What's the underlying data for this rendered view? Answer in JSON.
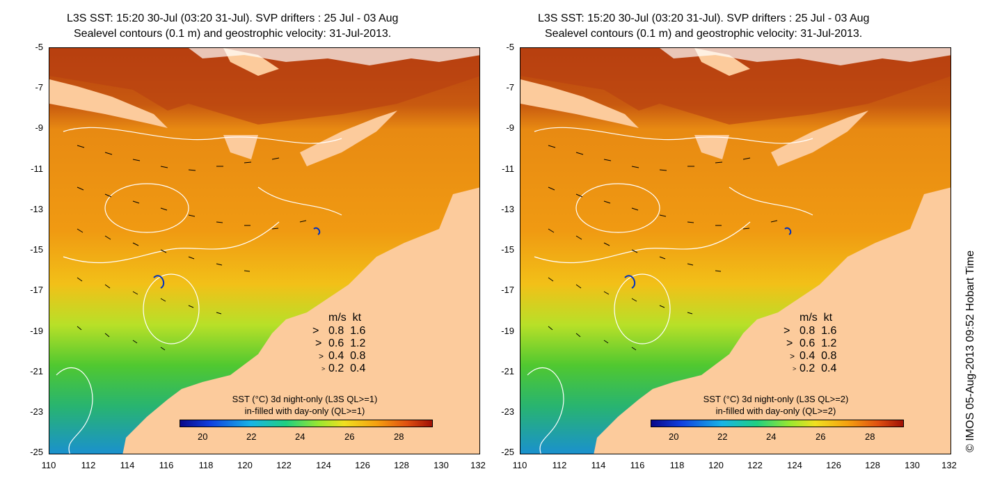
{
  "panels": [
    {
      "title_line1": "L3S SST: 15:20 30-Jul (03:20 31-Jul). SVP drifters : 25 Jul - 03 Aug",
      "title_line2": "Sealevel contours (0.1 m) and geostrophic velocity: 31-Jul-2013.",
      "legend_line1": "SST (°C)  3d night-only (L3S QL>=1)",
      "legend_line2": "in-filled with day-only (QL>=1)"
    },
    {
      "title_line1": "L3S SST: 15:20 30-Jul (03:20 31-Jul). SVP drifters : 25 Jul - 03 Aug",
      "title_line2": "Sealevel contours (0.1 m) and geostrophic velocity: 31-Jul-2013.",
      "legend_line1": "SST (°C)  3d night-only (L3S QL>=2)",
      "legend_line2": "in-filled with day-only (QL>=2)"
    }
  ],
  "y_ticks": [
    "-5",
    "-7",
    "-9",
    "-11",
    "-13",
    "-15",
    "-17",
    "-19",
    "-21",
    "-23",
    "-25"
  ],
  "x_ticks": [
    "110",
    "112",
    "114",
    "116",
    "118",
    "120",
    "122",
    "124",
    "126",
    "128",
    "130",
    "132"
  ],
  "colorbar_ticks": [
    "20",
    "22",
    "24",
    "26",
    "28"
  ],
  "velocity_legend": {
    "header": "m/s  kt",
    "rows": [
      {
        "ms": "0.8",
        "kt": "1.6"
      },
      {
        "ms": "0.6",
        "kt": "1.2"
      },
      {
        "ms": "0.4",
        "kt": "0.8"
      },
      {
        "ms": "0.2",
        "kt": "0.4"
      }
    ]
  },
  "credit": "© IMOS 05-Aug-2013 09:52 Hobart Time",
  "colors": {
    "land": "#fccb9c",
    "sst_warm": "#c84a10",
    "sst_mid": "#f09a10",
    "sst_cool": "#6ad820",
    "sst_cold": "#1060d0"
  }
}
